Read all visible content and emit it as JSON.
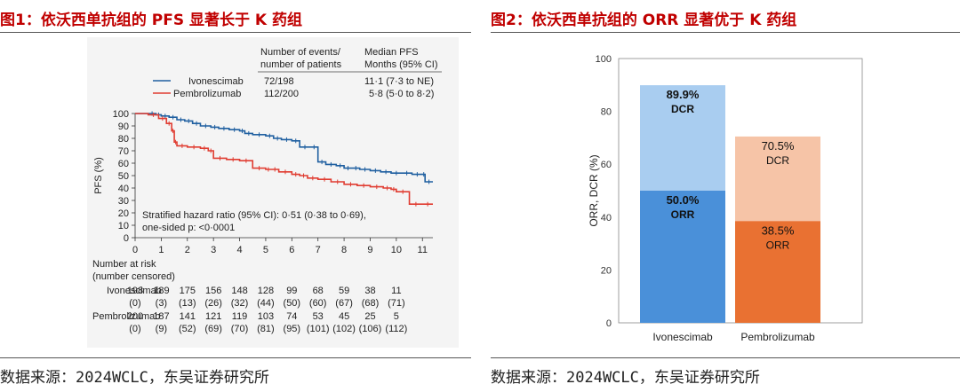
{
  "left": {
    "title": "图1：依沃西单抗组的 PFS 显著长于 K 药组",
    "source": "数据来源：2024WCLC，东吴证券研究所",
    "chart_data": {
      "type": "line",
      "ylabel": "PFS (%)",
      "xlim": [
        0,
        11.4
      ],
      "ylim": [
        0,
        100
      ],
      "x_ticks": [
        0,
        1,
        2,
        3,
        4,
        5,
        6,
        7,
        8,
        9,
        10,
        11
      ],
      "y_ticks": [
        0,
        10,
        20,
        30,
        40,
        50,
        60,
        70,
        80,
        90,
        100
      ],
      "header": {
        "col1_line1": "Number of events/",
        "col1_line2": "number of patients",
        "col2_line1": "Median PFS",
        "col2_line2": "Months (95% CI)"
      },
      "series": [
        {
          "name": "Ivonescimab",
          "color": "#1f5fa0",
          "events": "72/198",
          "median": "11·1 (7·3 to NE)",
          "x": [
            0,
            0.5,
            0.8,
            1.0,
            1.3,
            1.6,
            1.9,
            2.2,
            2.5,
            2.9,
            3.2,
            3.6,
            4.0,
            4.2,
            4.5,
            5.0,
            5.3,
            5.6,
            6.0,
            6.3,
            6.7,
            7.0,
            7.3,
            7.7,
            8.0,
            8.3,
            8.6,
            9.0,
            9.4,
            9.8,
            10.2,
            10.6,
            11.0,
            11.1,
            11.4
          ],
          "y": [
            100,
            100,
            99,
            98,
            97,
            95,
            94,
            92,
            90,
            89,
            88,
            87,
            86,
            84,
            83,
            82,
            80,
            79,
            78,
            73,
            73,
            61,
            59,
            58,
            56,
            56,
            55,
            54,
            53,
            52,
            52,
            51,
            51,
            45,
            45
          ]
        },
        {
          "name": "Pembrolizumab",
          "color": "#e03c31",
          "events": "112/200",
          "median": "5·8 (5·0 to 8·2)",
          "x": [
            0,
            0.5,
            0.9,
            1.2,
            1.4,
            1.5,
            1.6,
            2.0,
            2.5,
            2.8,
            3.0,
            3.5,
            4.0,
            4.5,
            5.0,
            5.2,
            5.5,
            6.0,
            6.3,
            6.6,
            7.0,
            7.5,
            8.0,
            8.5,
            9.0,
            9.5,
            9.8,
            10.0,
            10.5,
            11.0,
            11.4
          ],
          "y": [
            100,
            99,
            96,
            92,
            86,
            77,
            74,
            73,
            72,
            70,
            64,
            63,
            62,
            56,
            55,
            55,
            53,
            51,
            50,
            48,
            47,
            45,
            43,
            42,
            41,
            40,
            39,
            37,
            27,
            27,
            27
          ]
        }
      ],
      "annotation_line1": "Stratified hazard ratio (95% CI): 0·51 (0·38 to 0·69),",
      "annotation_line2": "one-sided p: <0·0001",
      "risk_table": {
        "title_line1": "Number at risk",
        "title_line2": "(number censored)",
        "rows": [
          {
            "name": "Ivonescimab",
            "at_risk": [
              "198",
              "189",
              "175",
              "156",
              "148",
              "128",
              "99",
              "68",
              "59",
              "38",
              "11"
            ],
            "censored": [
              "(0)",
              "(3)",
              "(13)",
              "(26)",
              "(32)",
              "(44)",
              "(50)",
              "(60)",
              "(67)",
              "(68)",
              "(71)"
            ]
          },
          {
            "name": "Pembrolizumab",
            "at_risk": [
              "200",
              "187",
              "141",
              "121",
              "119",
              "103",
              "74",
              "53",
              "45",
              "25",
              "5"
            ],
            "censored": [
              "(0)",
              "(9)",
              "(52)",
              "(69)",
              "(70)",
              "(81)",
              "(95)",
              "(101)",
              "(102)",
              "(106)",
              "(112)"
            ]
          }
        ]
      }
    }
  },
  "right": {
    "title": "图2：依沃西单抗组的 ORR 显著优于 K 药组",
    "source": "数据来源：2024WCLC，东吴证券研究所",
    "chart_data": {
      "type": "bar",
      "stacked": true,
      "ylabel": "ORR, DCR (%)",
      "ylim": [
        0,
        100
      ],
      "y_ticks": [
        0,
        20,
        40,
        60,
        80,
        100
      ],
      "categories": [
        "Ivonescimab",
        "Pembrolizumab"
      ],
      "bars": [
        {
          "category": "Ivonescimab",
          "orr": 50.0,
          "dcr": 89.9,
          "orr_label": "50.0%",
          "orr_name": "ORR",
          "dcr_label": "89.9%",
          "dcr_name": "DCR",
          "orr_color": "#4a90d9",
          "dcr_color": "#a9cdf0",
          "bold": true
        },
        {
          "category": "Pembrolizumab",
          "orr": 38.5,
          "dcr": 70.5,
          "orr_label": "38.5%",
          "orr_name": "ORR",
          "dcr_label": "70.5%",
          "dcr_name": "DCR",
          "orr_color": "#e97132",
          "dcr_color": "#f6c4a7",
          "bold": false
        }
      ]
    }
  }
}
